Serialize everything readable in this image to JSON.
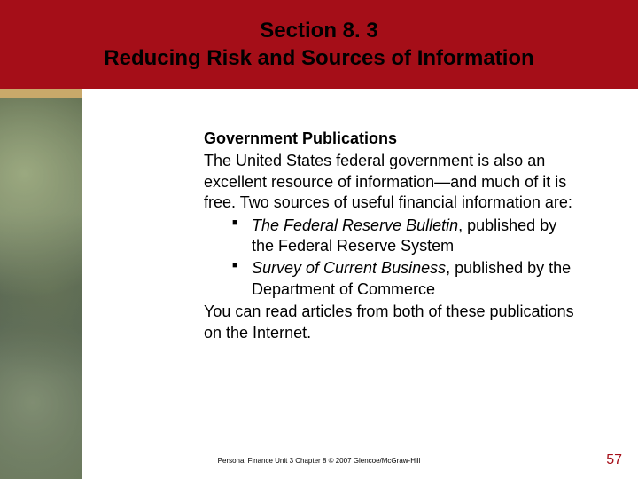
{
  "colors": {
    "header_bg": "#a50e18",
    "accent_bar": "#c9a96a",
    "text": "#000000",
    "page_num": "#a50e18",
    "body_bg": "#ffffff"
  },
  "header": {
    "line1": "Section 8. 3",
    "line2": "Reducing Risk and Sources of Information"
  },
  "content": {
    "subheading": "Government Publications",
    "intro": "The United States federal government is also an excellent resource of information—and much of it is free. Two sources of useful financial information are:",
    "bullets": [
      {
        "title_italic": "The Federal Reserve Bulletin",
        "rest": ", published by the Federal Reserve System"
      },
      {
        "title_italic": "Survey of Current Business",
        "rest": ", published by the Department of Commerce"
      }
    ],
    "outro": "You can read articles from both of these publications on the Internet."
  },
  "footer": {
    "text": "Personal Finance  Unit 3  Chapter 8  © 2007  Glencoe/McGraw-Hill"
  },
  "page_number": "57"
}
